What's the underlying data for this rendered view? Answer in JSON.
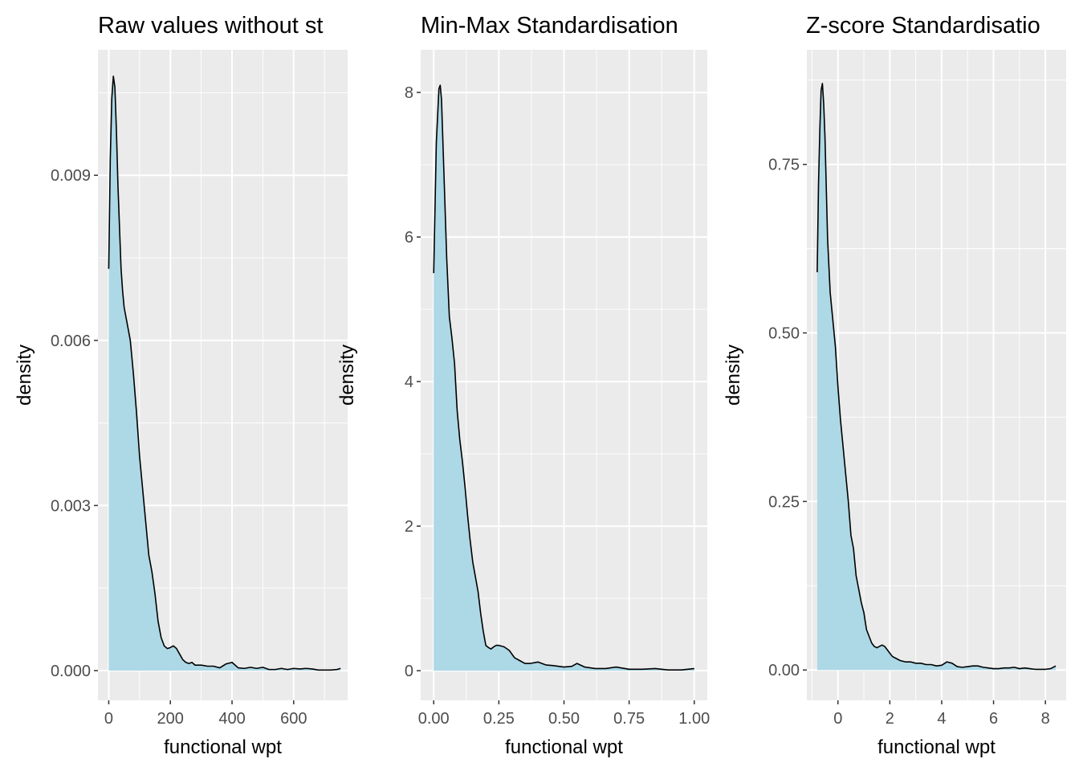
{
  "colors": {
    "panel_background": "#ebebeb",
    "grid_line": "#ffffff",
    "fill": "#add8e6",
    "outline": "#000000",
    "tick_text": "#4d4d4d"
  },
  "chart_data": [
    {
      "type": "area",
      "title": "Raw values without st",
      "xlabel": "functional wpt",
      "ylabel": "density",
      "xlim": [
        -35,
        775
      ],
      "ylim": [
        -0.00054,
        0.01128
      ],
      "x_ticks": [
        0,
        200,
        400,
        600
      ],
      "x_tick_labels": [
        "0",
        "200",
        "400",
        "600"
      ],
      "y_ticks": [
        0.0,
        0.003,
        0.006,
        0.009
      ],
      "y_tick_labels": [
        "0.000",
        "0.003",
        "0.006",
        "0.009"
      ],
      "series": [
        {
          "x": [
            0,
            5,
            10,
            15,
            20,
            25,
            30,
            40,
            45,
            50,
            60,
            70,
            80,
            90,
            100,
            110,
            120,
            130,
            140,
            150,
            160,
            170,
            180,
            190,
            200,
            210,
            220,
            230,
            240,
            250,
            260,
            270,
            280,
            300,
            320,
            340,
            360,
            380,
            400,
            410,
            420,
            440,
            460,
            480,
            500,
            520,
            540,
            560,
            580,
            600,
            620,
            640,
            660,
            680,
            700,
            720,
            740,
            752
          ],
          "y": [
            0.0073,
            0.0093,
            0.0104,
            0.0108,
            0.0106,
            0.0098,
            0.0088,
            0.0073,
            0.0069,
            0.0066,
            0.0063,
            0.006,
            0.0054,
            0.0047,
            0.0039,
            0.0033,
            0.0027,
            0.0021,
            0.0018,
            0.0014,
            0.0009,
            0.0006,
            0.00045,
            0.0004,
            0.00042,
            0.00045,
            0.0004,
            0.0003,
            0.0002,
            0.00015,
            0.00013,
            0.00015,
            0.0001,
            0.0001,
            8e-05,
            8e-05,
            5e-05,
            0.00012,
            0.00015,
            0.0001,
            5e-05,
            4e-05,
            6e-05,
            4e-05,
            6e-05,
            2e-05,
            2e-05,
            4e-05,
            2e-05,
            4e-05,
            3e-05,
            4e-05,
            3e-05,
            1e-05,
            1e-05,
            1e-05,
            2e-05,
            4e-05
          ]
        }
      ]
    },
    {
      "type": "area",
      "title": "Min-Max Standardisation",
      "xlabel": "functional wpt",
      "ylabel": "density",
      "xlim": [
        -0.05,
        1.05
      ],
      "ylim": [
        -0.41,
        8.59
      ],
      "x_ticks": [
        0.0,
        0.25,
        0.5,
        0.75,
        1.0
      ],
      "x_tick_labels": [
        "0.00",
        "0.25",
        "0.50",
        "0.75",
        "1.00"
      ],
      "y_ticks": [
        0,
        2,
        4,
        6,
        8
      ],
      "y_tick_labels": [
        "0",
        "2",
        "4",
        "6",
        "8"
      ],
      "series": [
        {
          "x": [
            0.0,
            0.01,
            0.02,
            0.025,
            0.03,
            0.04,
            0.05,
            0.06,
            0.07,
            0.08,
            0.09,
            0.1,
            0.11,
            0.12,
            0.13,
            0.14,
            0.15,
            0.16,
            0.17,
            0.18,
            0.19,
            0.2,
            0.21,
            0.22,
            0.23,
            0.24,
            0.25,
            0.27,
            0.29,
            0.31,
            0.33,
            0.35,
            0.37,
            0.4,
            0.43,
            0.46,
            0.5,
            0.53,
            0.55,
            0.58,
            0.62,
            0.66,
            0.7,
            0.75,
            0.8,
            0.85,
            0.9,
            0.95,
            1.0
          ],
          "y": [
            5.5,
            7.3,
            8.05,
            8.1,
            7.9,
            6.8,
            5.7,
            4.9,
            4.6,
            4.25,
            3.6,
            3.2,
            2.9,
            2.55,
            2.15,
            1.8,
            1.5,
            1.3,
            1.1,
            0.8,
            0.55,
            0.35,
            0.32,
            0.3,
            0.33,
            0.35,
            0.35,
            0.33,
            0.28,
            0.18,
            0.14,
            0.1,
            0.1,
            0.12,
            0.08,
            0.07,
            0.05,
            0.06,
            0.1,
            0.05,
            0.03,
            0.03,
            0.05,
            0.02,
            0.02,
            0.03,
            0.01,
            0.01,
            0.03
          ]
        }
      ]
    },
    {
      "type": "area",
      "title": "Z-score Standardisatio",
      "xlabel": "functional wpt",
      "ylabel": "density",
      "xlim": [
        -1.2,
        8.8
      ],
      "ylim": [
        -0.045,
        0.92
      ],
      "x_ticks": [
        0,
        2,
        4,
        6,
        8
      ],
      "x_tick_labels": [
        "0",
        "2",
        "4",
        "6",
        "8"
      ],
      "y_ticks": [
        0.0,
        0.25,
        0.5,
        0.75
      ],
      "y_tick_labels": [
        "0.00",
        "0.25",
        "0.50",
        "0.75"
      ],
      "series": [
        {
          "x": [
            -0.8,
            -0.75,
            -0.7,
            -0.65,
            -0.6,
            -0.55,
            -0.5,
            -0.4,
            -0.3,
            -0.2,
            -0.1,
            0.0,
            0.1,
            0.2,
            0.3,
            0.4,
            0.5,
            0.6,
            0.7,
            0.8,
            0.9,
            1.0,
            1.1,
            1.2,
            1.3,
            1.4,
            1.5,
            1.6,
            1.7,
            1.8,
            1.9,
            2.0,
            2.1,
            2.2,
            2.4,
            2.6,
            2.8,
            3.0,
            3.2,
            3.4,
            3.6,
            3.8,
            4.0,
            4.2,
            4.4,
            4.6,
            4.8,
            5.0,
            5.2,
            5.4,
            5.6,
            5.8,
            6.0,
            6.2,
            6.4,
            6.6,
            6.8,
            7.0,
            7.2,
            7.4,
            7.6,
            7.8,
            8.0,
            8.2,
            8.4
          ],
          "y": [
            0.59,
            0.72,
            0.8,
            0.86,
            0.87,
            0.84,
            0.79,
            0.64,
            0.56,
            0.52,
            0.48,
            0.42,
            0.37,
            0.33,
            0.29,
            0.25,
            0.2,
            0.18,
            0.14,
            0.12,
            0.1,
            0.085,
            0.06,
            0.05,
            0.04,
            0.035,
            0.033,
            0.035,
            0.037,
            0.035,
            0.03,
            0.025,
            0.02,
            0.018,
            0.014,
            0.012,
            0.012,
            0.01,
            0.01,
            0.008,
            0.008,
            0.006,
            0.007,
            0.012,
            0.01,
            0.005,
            0.004,
            0.005,
            0.006,
            0.006,
            0.004,
            0.003,
            0.002,
            0.002,
            0.003,
            0.003,
            0.004,
            0.002,
            0.003,
            0.002,
            0.001,
            0.001,
            0.001,
            0.002,
            0.006
          ]
        }
      ]
    }
  ]
}
